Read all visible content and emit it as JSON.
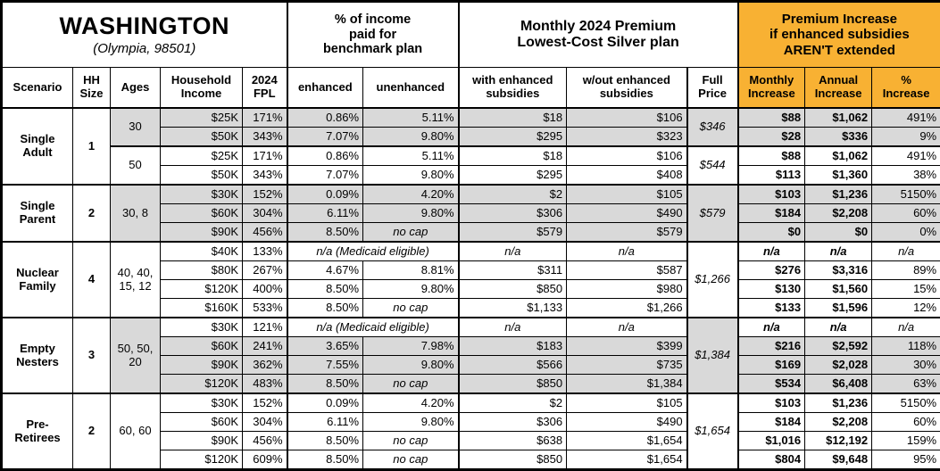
{
  "title_block": {
    "state": "WASHINGTON",
    "city": "(Olympia, 98501)"
  },
  "group_headers": {
    "income_pct": "% of income\npaid for\nbenchmark plan",
    "premium": "Monthly 2024 Premium\nLowest-Cost Silver plan",
    "increase": "Premium Increase\nif enhanced subsidies\nAREN'T extended"
  },
  "column_headers": {
    "scenario": "Scenario",
    "hh_size": "HH\nSize",
    "ages": "Ages",
    "income": "Household\nIncome",
    "fpl": "2024\nFPL",
    "enhanced": "enhanced",
    "unenhanced": "unenhanced",
    "with_sub": "with enhanced\nsubsidies",
    "wout_sub": "w/out enhanced\nsubsidies",
    "full_price": "Full\nPrice",
    "monthly": "Monthly\nIncrease",
    "annual": "Annual\nIncrease",
    "pct": "%\nIncrease"
  },
  "colors": {
    "accent_orange": "#F8B133",
    "shaded_gray": "#D9D9D9"
  },
  "groups": [
    {
      "scenario": "Single\nAdult",
      "hh_size": "1",
      "blocks": [
        {
          "ages": "30",
          "shaded": true,
          "full_price": "$346",
          "rows": [
            {
              "shaded": true,
              "income": "$25K",
              "fpl": "171%",
              "enhanced": "0.86%",
              "unenhanced": "5.11%",
              "with_sub": "$18",
              "wout_sub": "$106",
              "monthly": "$88",
              "annual": "$1,062",
              "pct": "491%"
            },
            {
              "shaded": true,
              "income": "$50K",
              "fpl": "343%",
              "enhanced": "7.07%",
              "unenhanced": "9.80%",
              "with_sub": "$295",
              "wout_sub": "$323",
              "monthly": "$28",
              "annual": "$336",
              "pct": "9%"
            }
          ]
        },
        {
          "ages": "50",
          "shaded": false,
          "full_price": "$544",
          "rows": [
            {
              "shaded": false,
              "income": "$25K",
              "fpl": "171%",
              "enhanced": "0.86%",
              "unenhanced": "5.11%",
              "with_sub": "$18",
              "wout_sub": "$106",
              "monthly": "$88",
              "annual": "$1,062",
              "pct": "491%"
            },
            {
              "shaded": false,
              "income": "$50K",
              "fpl": "343%",
              "enhanced": "7.07%",
              "unenhanced": "9.80%",
              "with_sub": "$295",
              "wout_sub": "$408",
              "monthly": "$113",
              "annual": "$1,360",
              "pct": "38%"
            }
          ]
        }
      ]
    },
    {
      "scenario": "Single\nParent",
      "hh_size": "2",
      "blocks": [
        {
          "ages": "30, 8",
          "shaded": true,
          "full_price": "$579",
          "rows": [
            {
              "shaded": true,
              "income": "$30K",
              "fpl": "152%",
              "enhanced": "0.09%",
              "unenhanced": "4.20%",
              "with_sub": "$2",
              "wout_sub": "$105",
              "monthly": "$103",
              "annual": "$1,236",
              "pct": "5150%"
            },
            {
              "shaded": true,
              "income": "$60K",
              "fpl": "304%",
              "enhanced": "6.11%",
              "unenhanced": "9.80%",
              "with_sub": "$306",
              "wout_sub": "$490",
              "monthly": "$184",
              "annual": "$2,208",
              "pct": "60%"
            },
            {
              "shaded": true,
              "income": "$90K",
              "fpl": "456%",
              "enhanced": "8.50%",
              "unenhanced": "no cap",
              "with_sub": "$579",
              "wout_sub": "$579",
              "monthly": "$0",
              "annual": "$0",
              "pct": "0%"
            }
          ]
        }
      ]
    },
    {
      "scenario": "Nuclear\nFamily",
      "hh_size": "4",
      "blocks": [
        {
          "ages": "40, 40,\n15, 12",
          "shaded": false,
          "full_price": "$1,266",
          "rows": [
            {
              "shaded": false,
              "income": "$40K",
              "fpl": "133%",
              "medicaid": "n/a (Medicaid eligible)",
              "with_sub": "n/a",
              "wout_sub": "n/a",
              "monthly": "n/a",
              "annual": "n/a",
              "pct": "n/a"
            },
            {
              "shaded": false,
              "income": "$80K",
              "fpl": "267%",
              "enhanced": "4.67%",
              "unenhanced": "8.81%",
              "with_sub": "$311",
              "wout_sub": "$587",
              "monthly": "$276",
              "annual": "$3,316",
              "pct": "89%"
            },
            {
              "shaded": false,
              "income": "$120K",
              "fpl": "400%",
              "enhanced": "8.50%",
              "unenhanced": "9.80%",
              "with_sub": "$850",
              "wout_sub": "$980",
              "monthly": "$130",
              "annual": "$1,560",
              "pct": "15%"
            },
            {
              "shaded": false,
              "income": "$160K",
              "fpl": "533%",
              "enhanced": "8.50%",
              "unenhanced": "no cap",
              "with_sub": "$1,133",
              "wout_sub": "$1,266",
              "monthly": "$133",
              "annual": "$1,596",
              "pct": "12%"
            }
          ]
        }
      ]
    },
    {
      "scenario": "Empty\nNesters",
      "hh_size": "3",
      "blocks": [
        {
          "ages": "50, 50,\n20",
          "shaded": true,
          "full_price": "$1,384",
          "rows": [
            {
              "shaded": false,
              "income": "$30K",
              "fpl": "121%",
              "medicaid": "n/a (Medicaid eligible)",
              "with_sub": "n/a",
              "wout_sub": "n/a",
              "monthly": "n/a",
              "annual": "n/a",
              "pct": "n/a"
            },
            {
              "shaded": true,
              "income": "$60K",
              "fpl": "241%",
              "enhanced": "3.65%",
              "unenhanced": "7.98%",
              "with_sub": "$183",
              "wout_sub": "$399",
              "monthly": "$216",
              "annual": "$2,592",
              "pct": "118%"
            },
            {
              "shaded": true,
              "income": "$90K",
              "fpl": "362%",
              "enhanced": "7.55%",
              "unenhanced": "9.80%",
              "with_sub": "$566",
              "wout_sub": "$735",
              "monthly": "$169",
              "annual": "$2,028",
              "pct": "30%"
            },
            {
              "shaded": true,
              "income": "$120K",
              "fpl": "483%",
              "enhanced": "8.50%",
              "unenhanced": "no cap",
              "with_sub": "$850",
              "wout_sub": "$1,384",
              "monthly": "$534",
              "annual": "$6,408",
              "pct": "63%"
            }
          ]
        }
      ]
    },
    {
      "scenario": "Pre-\nRetirees",
      "hh_size": "2",
      "blocks": [
        {
          "ages": "60, 60",
          "shaded": false,
          "full_price": "$1,654",
          "rows": [
            {
              "shaded": false,
              "income": "$30K",
              "fpl": "152%",
              "enhanced": "0.09%",
              "unenhanced": "4.20%",
              "with_sub": "$2",
              "wout_sub": "$105",
              "monthly": "$103",
              "annual": "$1,236",
              "pct": "5150%"
            },
            {
              "shaded": false,
              "income": "$60K",
              "fpl": "304%",
              "enhanced": "6.11%",
              "unenhanced": "9.80%",
              "with_sub": "$306",
              "wout_sub": "$490",
              "monthly": "$184",
              "annual": "$2,208",
              "pct": "60%"
            },
            {
              "shaded": false,
              "income": "$90K",
              "fpl": "456%",
              "enhanced": "8.50%",
              "unenhanced": "no cap",
              "with_sub": "$638",
              "wout_sub": "$1,654",
              "monthly": "$1,016",
              "annual": "$12,192",
              "pct": "159%"
            },
            {
              "shaded": false,
              "income": "$120K",
              "fpl": "609%",
              "enhanced": "8.50%",
              "unenhanced": "no cap",
              "with_sub": "$850",
              "wout_sub": "$1,654",
              "monthly": "$804",
              "annual": "$9,648",
              "pct": "95%"
            }
          ]
        }
      ]
    }
  ]
}
